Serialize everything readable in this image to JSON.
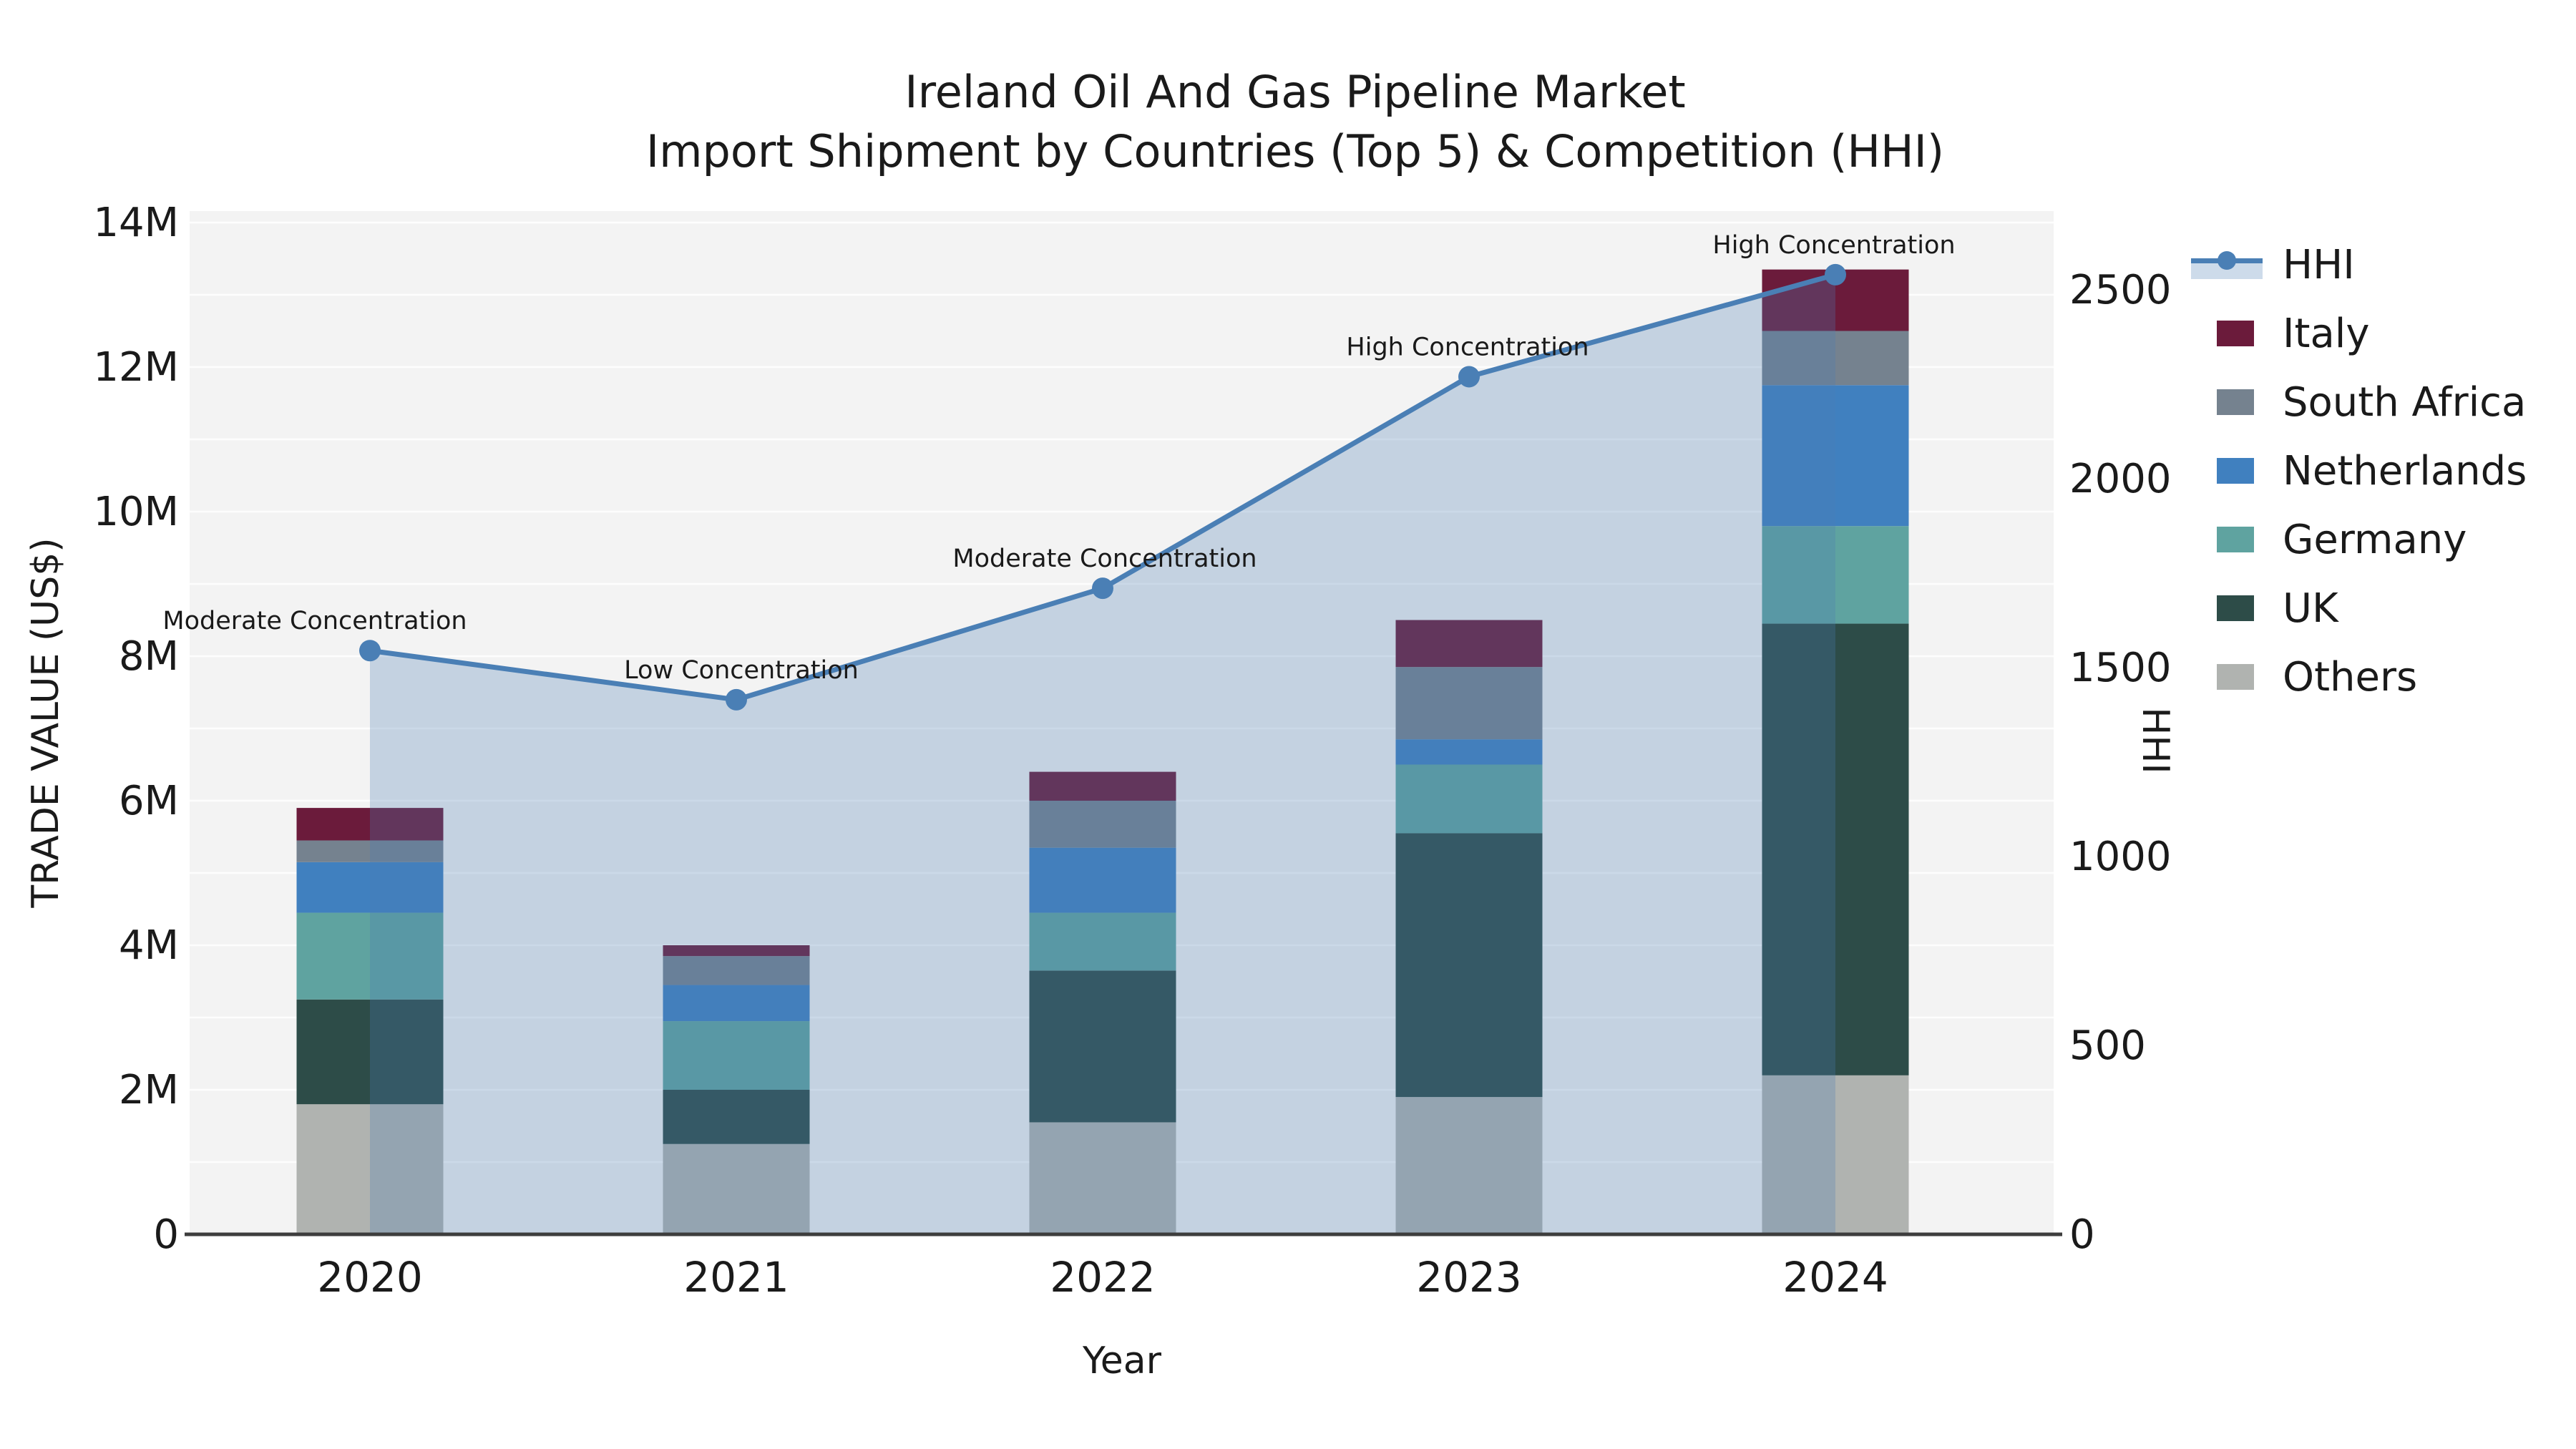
{
  "page": {
    "title_line1": "Ireland Oil And Gas Pipeline Market",
    "title_line2": "Import Shipment by Countries (Top 5) & Competition (HHI)"
  },
  "colors": {
    "background": "#ffffff",
    "plot_background": "#f3f3f3",
    "gridline": "#ffffff",
    "axis_line": "#3d3d3d",
    "text": "#1a1a1a",
    "hhi_line": "#4A7FB5",
    "hhi_area": "rgba(74,127,181,0.28)",
    "italy": "#6B1B3B",
    "south_africa": "#75828F",
    "netherlands": "#4080BF",
    "germany": "#5FA3A0",
    "uk": "#2D4C48",
    "others": "#B0B3B0"
  },
  "legend": {
    "items": [
      {
        "label": "HHI",
        "kind": "line",
        "color": "#4A7FB5"
      },
      {
        "label": "Italy",
        "kind": "patch",
        "color": "#6B1B3B"
      },
      {
        "label": "South Africa",
        "kind": "patch",
        "color": "#75828F"
      },
      {
        "label": "Netherlands",
        "kind": "patch",
        "color": "#4080BF"
      },
      {
        "label": "Germany",
        "kind": "patch",
        "color": "#5FA3A0"
      },
      {
        "label": "UK",
        "kind": "patch",
        "color": "#2D4C48"
      },
      {
        "label": "Others",
        "kind": "patch",
        "color": "#B0B3B0"
      }
    ]
  },
  "chart_data": {
    "type": "bar+line",
    "title": "Ireland Oil And Gas Pipeline Market — Import Shipment by Countries (Top 5) & Competition (HHI)",
    "categories": [
      "2020",
      "2021",
      "2022",
      "2023",
      "2024"
    ],
    "unit_left": "million US$",
    "stack_order_bottom_to_top": [
      "Others",
      "UK",
      "Germany",
      "Netherlands",
      "South Africa",
      "Italy"
    ],
    "series": [
      {
        "name": "Others",
        "color": "#B0B3B0",
        "values": [
          1.8,
          1.25,
          1.55,
          1.9,
          2.2
        ]
      },
      {
        "name": "UK",
        "color": "#2D4C48",
        "values": [
          1.45,
          0.75,
          2.1,
          3.65,
          6.25
        ]
      },
      {
        "name": "Germany",
        "color": "#5FA3A0",
        "values": [
          1.2,
          0.95,
          0.8,
          0.95,
          1.35
        ]
      },
      {
        "name": "Netherlands",
        "color": "#4080BF",
        "values": [
          0.7,
          0.5,
          0.9,
          0.35,
          1.95
        ]
      },
      {
        "name": "South Africa",
        "color": "#75828F",
        "values": [
          0.3,
          0.4,
          0.65,
          1.0,
          0.75
        ]
      },
      {
        "name": "Italy",
        "color": "#6B1B3B",
        "values": [
          0.45,
          0.15,
          0.4,
          0.65,
          0.85
        ]
      }
    ],
    "bar_totals_millions": [
      5.9,
      4.0,
      6.4,
      8.5,
      13.35
    ],
    "line": {
      "name": "HHI",
      "color": "#4A7FB5",
      "area_fill": "rgba(74,127,181,0.28)",
      "values": [
        1545,
        1415,
        1710,
        2270,
        2540
      ]
    },
    "annotations": [
      {
        "text": "Moderate Concentration",
        "x": 440
      },
      {
        "text": "Low Concentration",
        "x": 1036
      },
      {
        "text": "Moderate Concentration",
        "x": 1544
      },
      {
        "text": "High Concentration",
        "x": 2051
      },
      {
        "text": "High Concentration",
        "x": 2563
      }
    ],
    "axis_left": {
      "label": "TRADE VALUE (US$)",
      "ticks": [
        "0",
        "2M",
        "4M",
        "6M",
        "8M",
        "10M",
        "12M",
        "14M"
      ],
      "values": [
        0,
        2,
        4,
        6,
        8,
        10,
        12,
        14
      ],
      "lim": [
        0,
        14.15
      ]
    },
    "axis_right": {
      "label": "HHI",
      "ticks": [
        "0",
        "500",
        "1000",
        "1500",
        "2000",
        "2500"
      ],
      "values": [
        0,
        500,
        1000,
        1500,
        2000,
        2500
      ],
      "lim": [
        0,
        2680
      ]
    },
    "axis_x": {
      "label": "Year"
    },
    "grid": {
      "show": true,
      "interval_left_millions": 1
    },
    "legend_position": "right"
  }
}
